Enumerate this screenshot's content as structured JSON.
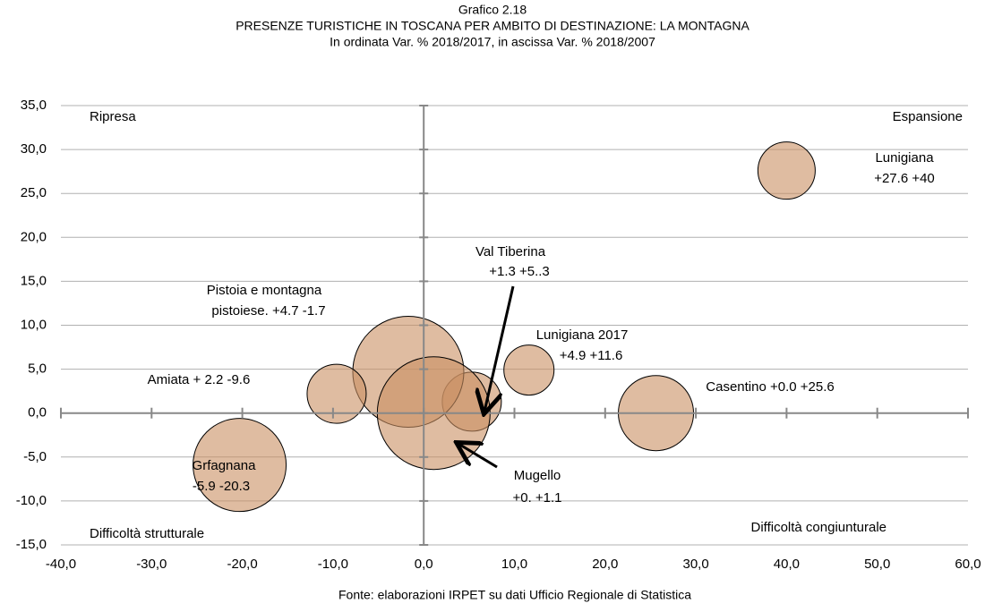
{
  "chart_data": {
    "type": "bubble",
    "title": "Grafico 2.18",
    "subtitle": "PRESENZE TURISTICHE IN TOSCANA PER AMBITO DI DESTINAZIONE: LA MONTAGNA",
    "axis_note": "In ordinata Var. % 2018/2017, in ascissa Var. % 2018/2007",
    "source": "Fonte: elaborazioni IRPET su dati Ufficio Regionale di Statistica",
    "x": [
      40,
      5.3,
      -1.7,
      11.6,
      -9.6,
      25.6,
      1.1,
      -20.3
    ],
    "values": [
      27.6,
      1.3,
      4.7,
      4.9,
      2.2,
      0,
      0,
      -5.9
    ],
    "sizes": [
      32,
      33,
      62,
      28,
      33,
      42,
      63,
      52
    ],
    "color": "#c98f62",
    "point_labels": [
      [
        "Lunigiana",
        "+27.6 +40"
      ],
      [
        "Val Tiberina",
        "+1.3 +5..3"
      ],
      [
        "Pistoia e montagna",
        "pistoiese. +4.7 -1.7"
      ],
      [
        "Lunigiana 2017",
        "+4.9 +11.6"
      ],
      [
        "Amiata + 2.2 -9.6"
      ],
      [
        "Casentino +0.0 +25.6"
      ],
      [
        "Mugello",
        "+0. +1.1"
      ],
      [
        "Grfagnana",
        "-5.9  -20.3"
      ]
    ],
    "quadrant_labels": [
      "Ripresa",
      "Espansione",
      "Difficoltà strutturale",
      "Difficoltà congiunturale"
    ],
    "xlim": [
      -40,
      60
    ],
    "ylim": [
      -15,
      35
    ],
    "xticks": [
      {
        "value": -40,
        "label": "-40,0"
      },
      {
        "value": -30,
        "label": "-30,0"
      },
      {
        "value": -20,
        "label": "-20,0"
      },
      {
        "value": -10,
        "label": "-10,0"
      },
      {
        "value": 0,
        "label": "0,0"
      },
      {
        "value": 10,
        "label": "10,0"
      },
      {
        "value": 20,
        "label": "20,0"
      },
      {
        "value": 30,
        "label": "30,0"
      },
      {
        "value": 40,
        "label": "40,0"
      },
      {
        "value": 50,
        "label": "50,0"
      },
      {
        "value": 60,
        "label": "60,0"
      }
    ],
    "yticks": [
      {
        "value": -15,
        "label": "-15,0"
      },
      {
        "value": -10,
        "label": "-10,0"
      },
      {
        "value": -5,
        "label": "-5,0"
      },
      {
        "value": 0,
        "label": "0,0"
      },
      {
        "value": 5,
        "label": "5,0"
      },
      {
        "value": 10,
        "label": "10,0"
      },
      {
        "value": 15,
        "label": "15,0"
      },
      {
        "value": 20,
        "label": "20,0"
      },
      {
        "value": 25,
        "label": "25,0"
      },
      {
        "value": 30,
        "label": "30,0"
      },
      {
        "value": 35,
        "label": "35,0"
      }
    ],
    "grid": true
  }
}
